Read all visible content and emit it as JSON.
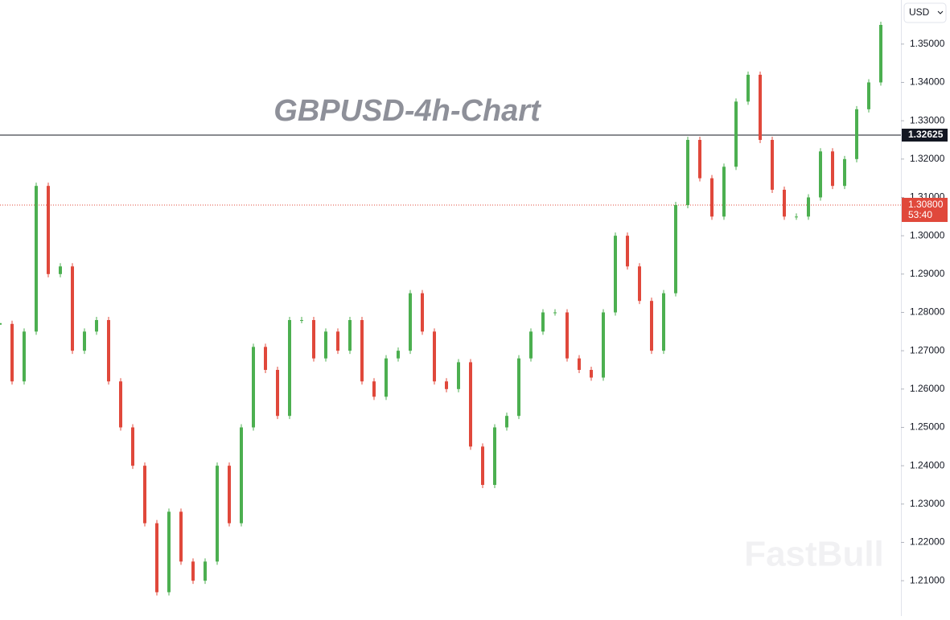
{
  "chart_data": {
    "type": "candlestick",
    "title": "GBPUSD-4h-Chart",
    "currency": "USD",
    "watermark": "FastBull",
    "values": [
      1.277,
      1.262,
      1.275,
      1.313,
      1.29,
      1.292,
      1.27,
      1.275,
      1.278,
      1.262,
      1.25,
      1.24,
      1.225,
      1.207,
      1.228,
      1.215,
      1.21,
      1.215,
      1.24,
      1.225,
      1.25,
      1.271,
      1.265,
      1.253,
      1.278,
      1.278,
      1.268,
      1.275,
      1.27,
      1.278,
      1.262,
      1.258,
      1.268,
      1.27,
      1.285,
      1.275,
      1.262,
      1.26,
      1.267,
      1.245,
      1.235,
      1.25,
      1.253,
      1.268,
      1.275,
      1.28,
      1.28,
      1.268,
      1.265,
      1.263,
      1.28,
      1.3,
      1.292,
      1.283,
      1.27,
      1.285,
      1.308,
      1.325,
      1.315,
      1.305,
      1.318,
      1.335,
      1.342,
      1.325,
      1.312,
      1.305,
      1.305,
      1.31,
      1.322,
      1.313,
      1.32,
      1.333,
      1.34,
      1.355
    ],
    "up_color": "#4caf50",
    "down_color": "#e0483b",
    "ylim": [
      1.2008,
      1.3615
    ],
    "yticks": [
      {
        "value": 1.21,
        "label": "1.21000"
      },
      {
        "value": 1.22,
        "label": "1.22000"
      },
      {
        "value": 1.23,
        "label": "1.23000"
      },
      {
        "value": 1.24,
        "label": "1.24000"
      },
      {
        "value": 1.25,
        "label": "1.25000"
      },
      {
        "value": 1.26,
        "label": "1.26000"
      },
      {
        "value": 1.27,
        "label": "1.27000"
      },
      {
        "value": 1.28,
        "label": "1.28000"
      },
      {
        "value": 1.29,
        "label": "1.29000"
      },
      {
        "value": 1.3,
        "label": "1.30000"
      },
      {
        "value": 1.31,
        "label": "1.31000"
      },
      {
        "value": 1.32,
        "label": "1.32000"
      },
      {
        "value": 1.33,
        "label": "1.33000"
      },
      {
        "value": 1.34,
        "label": "1.34000"
      },
      {
        "value": 1.35,
        "label": "1.35000"
      }
    ],
    "level": {
      "value": 1.32625,
      "label": "1.32625"
    },
    "current_price": {
      "value": 1.308,
      "label": "1.30800",
      "countdown": "53:40"
    }
  }
}
